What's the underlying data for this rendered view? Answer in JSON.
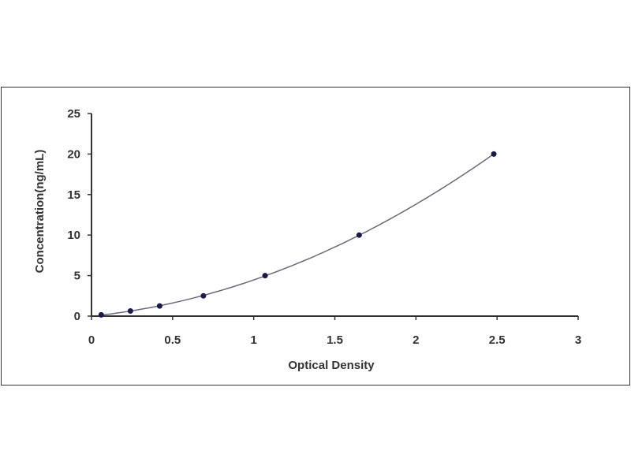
{
  "chart_data": {
    "type": "scatter",
    "title": "",
    "xlabel": "Optical Density",
    "ylabel": "Concentration(ng/mL)",
    "xlim": [
      0,
      3
    ],
    "ylim": [
      0,
      25
    ],
    "xticks": [
      "0",
      "0.5",
      "1",
      "1.5",
      "2",
      "2.5",
      "3"
    ],
    "yticks": [
      "0",
      "5",
      "10",
      "15",
      "20",
      "25"
    ],
    "grid": false,
    "points": [
      {
        "x": 0.06,
        "y": 0.16
      },
      {
        "x": 0.24,
        "y": 0.63
      },
      {
        "x": 0.42,
        "y": 1.25
      },
      {
        "x": 0.69,
        "y": 2.5
      },
      {
        "x": 1.07,
        "y": 5
      },
      {
        "x": 1.65,
        "y": 10
      },
      {
        "x": 2.48,
        "y": 20
      }
    ],
    "fit_curve": true,
    "colors": {
      "points": "#1a1a4a",
      "curve": "#6a6a7a",
      "axis": "#333333"
    }
  }
}
